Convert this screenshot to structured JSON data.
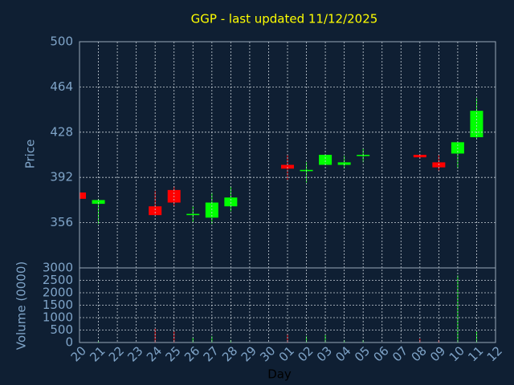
{
  "chart_data": {
    "type": "candlestick",
    "title": "GGP - last updated 11/12/2025",
    "title_color": "#ffff00",
    "y_label": "Price",
    "volume_label": "Volume (0000)",
    "x_label": "Day",
    "categories": [
      "20",
      "21",
      "22",
      "23",
      "24",
      "25",
      "26",
      "27",
      "28",
      "29",
      "30",
      "01",
      "02",
      "03",
      "04",
      "05",
      "06",
      "07",
      "08",
      "09",
      "10",
      "11",
      "12"
    ],
    "open": [
      380,
      371,
      null,
      null,
      369,
      382,
      362,
      360,
      369,
      null,
      null,
      402,
      397,
      402,
      402,
      409,
      null,
      null,
      410,
      404,
      411,
      424,
      null
    ],
    "high": [
      380,
      375,
      null,
      null,
      381,
      385,
      369,
      380,
      385,
      null,
      null,
      410,
      404,
      410,
      409,
      415,
      null,
      null,
      410,
      410,
      420,
      455,
      null
    ],
    "low": [
      375,
      355,
      null,
      null,
      362,
      369,
      356,
      355,
      365,
      null,
      null,
      390,
      388,
      402,
      399,
      404,
      null,
      null,
      407,
      397,
      399,
      423,
      null
    ],
    "close": [
      375,
      374,
      null,
      null,
      362,
      372,
      363,
      372,
      376,
      null,
      null,
      399,
      398,
      410,
      404,
      410,
      null,
      null,
      408,
      400,
      420,
      445,
      null
    ],
    "volume": [
      50,
      50,
      null,
      null,
      550,
      450,
      200,
      250,
      100,
      null,
      null,
      350,
      250,
      300,
      100,
      100,
      null,
      null,
      150,
      100,
      2700,
      450,
      null
    ],
    "up_color": "#00ff00",
    "down_color": "#ff0000",
    "ylim": [
      320,
      500
    ],
    "yticks": [
      356,
      392,
      428,
      464,
      500
    ],
    "volume_ylim": [
      0,
      3000
    ],
    "volume_ticks": [
      0,
      500,
      1000,
      1500,
      2000,
      2500,
      3000
    ],
    "grid": true
  }
}
